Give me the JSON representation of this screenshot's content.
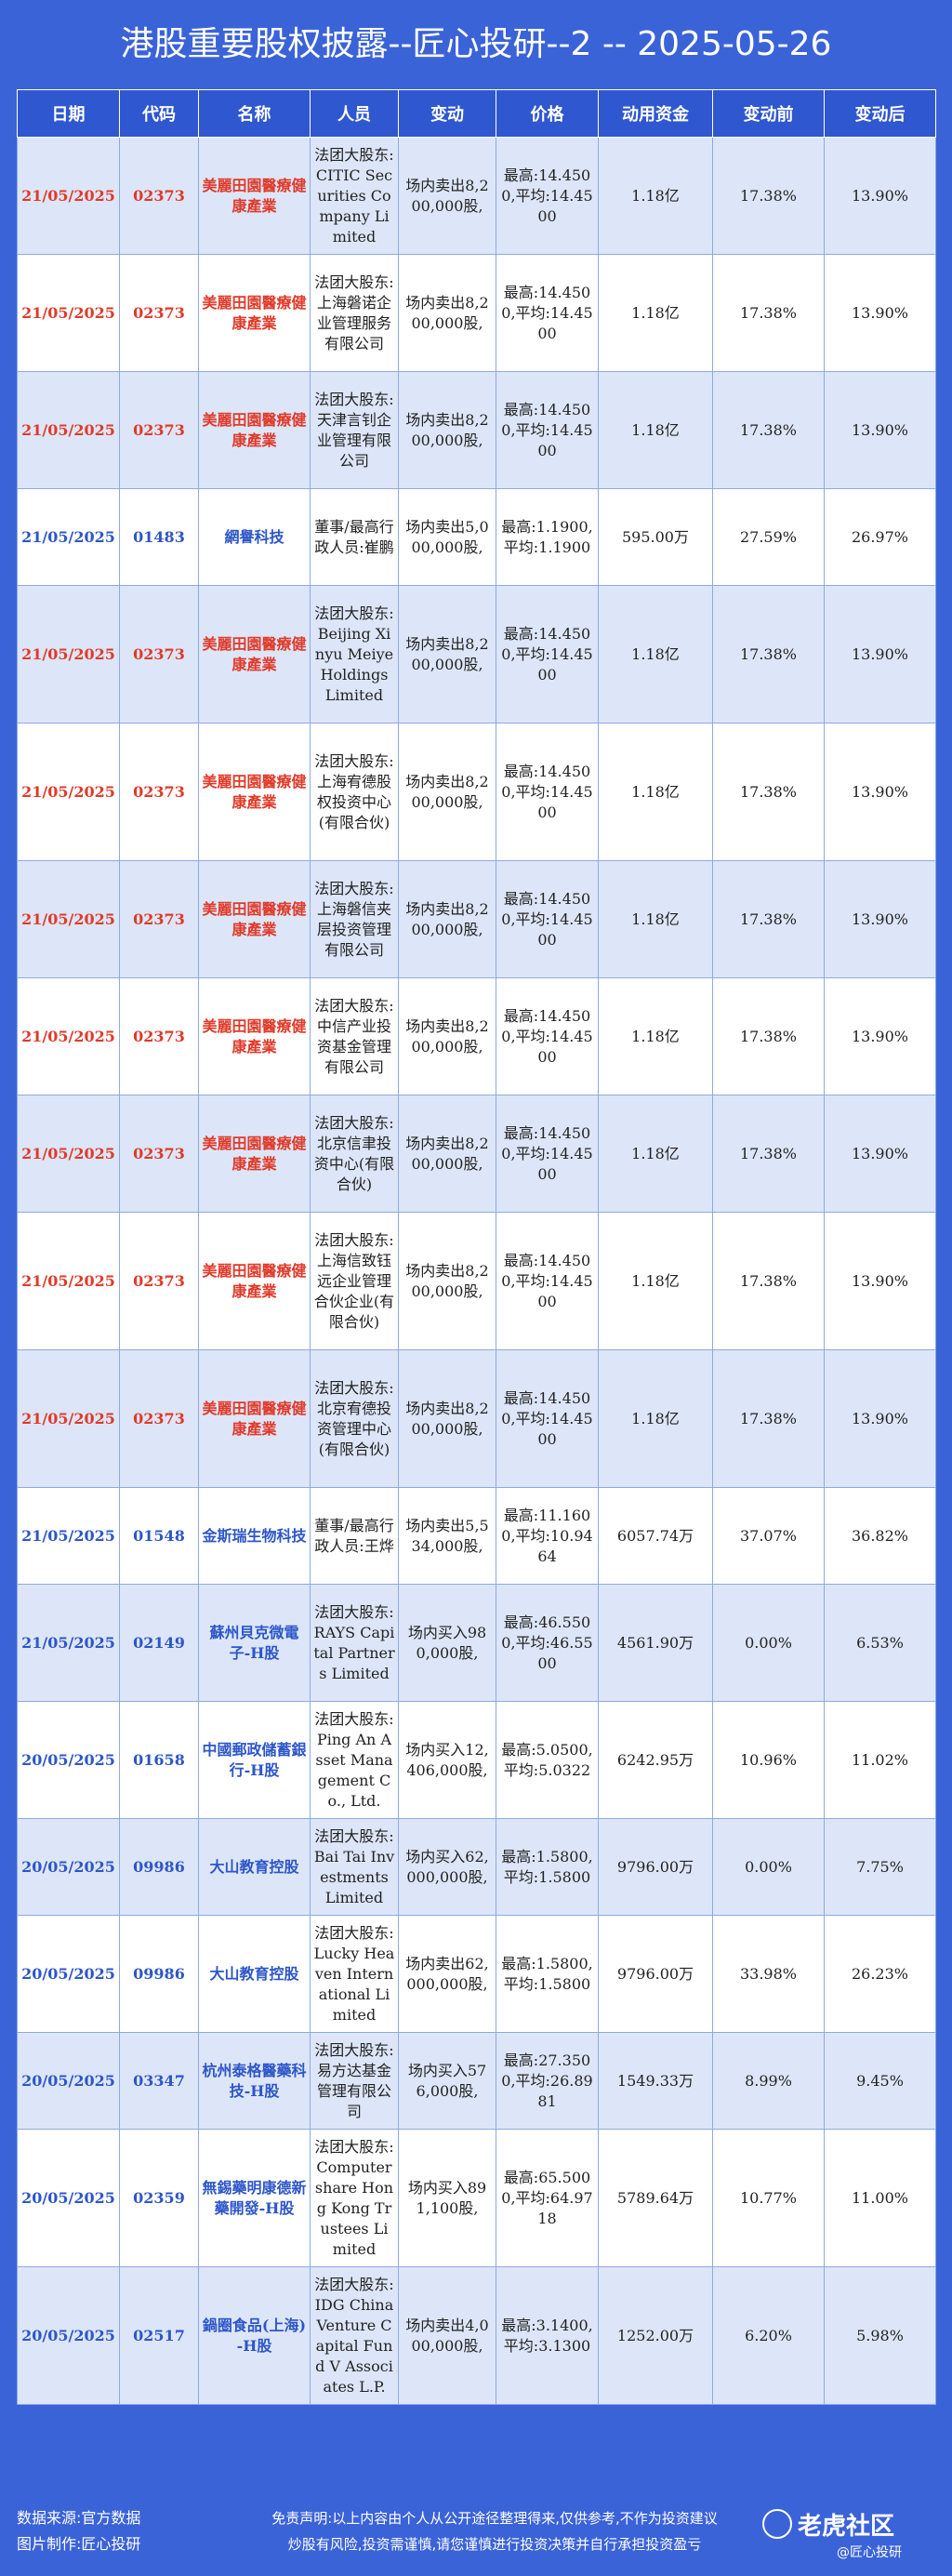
{
  "title": "港股重要股权披露--匠心投研--2 -- 2025-05-26",
  "headers": [
    "日期",
    "代码",
    "名称",
    "人员",
    "变动",
    "价格",
    "动用资金",
    "变动前",
    "变动后"
  ],
  "rows": [
    {
      "date": "21/05/2025",
      "code": "02373",
      "name": "美麗田園醫療健康產業",
      "person": "法团大股东:CITIC Securities Company Limited",
      "change": "场内卖出8,200,000股,",
      "price": "最高:14.4500,平均:14.4500",
      "amount": "1.18亿",
      "before": "17.38%",
      "after": "13.90%",
      "color": "red"
    },
    {
      "date": "21/05/2025",
      "code": "02373",
      "name": "美麗田園醫療健康產業",
      "person": "法团大股东:上海磐诺企业管理服务有限公司",
      "change": "场内卖出8,200,000股,",
      "price": "最高:14.4500,平均:14.4500",
      "amount": "1.18亿",
      "before": "17.38%",
      "after": "13.90%",
      "color": "red"
    },
    {
      "date": "21/05/2025",
      "code": "02373",
      "name": "美麗田園醫療健康產業",
      "person": "法团大股东:天津言钊企业管理有限公司",
      "change": "场内卖出8,200,000股,",
      "price": "最高:14.4500,平均:14.4500",
      "amount": "1.18亿",
      "before": "17.38%",
      "after": "13.90%",
      "color": "red"
    },
    {
      "date": "21/05/2025",
      "code": "01483",
      "name": "網譽科技",
      "person": "董事/最高行政人员:崔鹏",
      "change": "场内卖出5,000,000股,",
      "price": "最高:1.1900,平均:1.1900",
      "amount": "595.00万",
      "before": "27.59%",
      "after": "26.97%",
      "color": "blue"
    },
    {
      "date": "21/05/2025",
      "code": "02373",
      "name": "美麗田園醫療健康產業",
      "person": "法团大股东:Beijing Xinyu Meiye Holdings Limited",
      "change": "场内卖出8,200,000股,",
      "price": "最高:14.4500,平均:14.4500",
      "amount": "1.18亿",
      "before": "17.38%",
      "after": "13.90%",
      "color": "red"
    },
    {
      "date": "21/05/2025",
      "code": "02373",
      "name": "美麗田園醫療健康產業",
      "person": "法团大股东:上海宥德股权投资中心(有限合伙)",
      "change": "场内卖出8,200,000股,",
      "price": "最高:14.4500,平均:14.4500",
      "amount": "1.18亿",
      "before": "17.38%",
      "after": "13.90%",
      "color": "red"
    },
    {
      "date": "21/05/2025",
      "code": "02373",
      "name": "美麗田園醫療健康產業",
      "person": "法团大股东:上海磐信夹层投资管理有限公司",
      "change": "场内卖出8,200,000股,",
      "price": "最高:14.4500,平均:14.4500",
      "amount": "1.18亿",
      "before": "17.38%",
      "after": "13.90%",
      "color": "red"
    },
    {
      "date": "21/05/2025",
      "code": "02373",
      "name": "美麗田園醫療健康產業",
      "person": "法团大股东:中信产业投资基金管理有限公司",
      "change": "场内卖出8,200,000股,",
      "price": "最高:14.4500,平均:14.4500",
      "amount": "1.18亿",
      "before": "17.38%",
      "after": "13.90%",
      "color": "red"
    },
    {
      "date": "21/05/2025",
      "code": "02373",
      "name": "美麗田園醫療健康產業",
      "person": "法团大股东:北京信聿投资中心(有限合伙)",
      "change": "场内卖出8,200,000股,",
      "price": "最高:14.4500,平均:14.4500",
      "amount": "1.18亿",
      "before": "17.38%",
      "after": "13.90%",
      "color": "red"
    },
    {
      "date": "21/05/2025",
      "code": "02373",
      "name": "美麗田園醫療健康產業",
      "person": "法团大股东:上海信致钰远企业管理合伙企业(有限合伙)",
      "change": "场内卖出8,200,000股,",
      "price": "最高:14.4500,平均:14.4500",
      "amount": "1.18亿",
      "before": "17.38%",
      "after": "13.90%",
      "color": "red"
    },
    {
      "date": "21/05/2025",
      "code": "02373",
      "name": "美麗田園醫療健康產業",
      "person": "法团大股东:北京宥德投资管理中心(有限合伙)",
      "change": "场内卖出8,200,000股,",
      "price": "最高:14.4500,平均:14.4500",
      "amount": "1.18亿",
      "before": "17.38%",
      "after": "13.90%",
      "color": "red"
    },
    {
      "date": "21/05/2025",
      "code": "01548",
      "name": "金斯瑞生物科技",
      "person": "董事/最高行政人员:王烨",
      "change": "场内卖出5,534,000股,",
      "price": "最高:11.1600,平均:10.9464",
      "amount": "6057.74万",
      "before": "37.07%",
      "after": "36.82%",
      "color": "blue"
    },
    {
      "date": "21/05/2025",
      "code": "02149",
      "name": "蘇州貝克微電子-H股",
      "person": "法团大股东:RAYS Capital Partners Limited",
      "change": "场内买入980,000股,",
      "price": "最高:46.5500,平均:46.5500",
      "amount": "4561.90万",
      "before": "0.00%",
      "after": "6.53%",
      "color": "blue"
    },
    {
      "date": "20/05/2025",
      "code": "01658",
      "name": "中國郵政儲蓄銀行-H股",
      "person": "法团大股东:Ping An Asset Management Co., Ltd.",
      "change": "场内买入12,406,000股,",
      "price": "最高:5.0500,平均:5.0322",
      "amount": "6242.95万",
      "before": "10.96%",
      "after": "11.02%",
      "color": "blue"
    },
    {
      "date": "20/05/2025",
      "code": "09986",
      "name": "大山教育控股",
      "person": "法团大股东:Bai Tai Investments Limited",
      "change": "场内买入62,000,000股,",
      "price": "最高:1.5800,平均:1.5800",
      "amount": "9796.00万",
      "before": "0.00%",
      "after": "7.75%",
      "color": "blue"
    },
    {
      "date": "20/05/2025",
      "code": "09986",
      "name": "大山教育控股",
      "person": "法团大股东:Lucky Heaven International Limited",
      "change": "场内卖出62,000,000股,",
      "price": "最高:1.5800,平均:1.5800",
      "amount": "9796.00万",
      "before": "33.98%",
      "after": "26.23%",
      "color": "blue"
    },
    {
      "date": "20/05/2025",
      "code": "03347",
      "name": "杭州泰格醫藥科技-H股",
      "person": "法团大股东:易方达基金管理有限公司",
      "change": "场内买入576,000股,",
      "price": "最高:27.3500,平均:26.8981",
      "amount": "1549.33万",
      "before": "8.99%",
      "after": "9.45%",
      "color": "blue"
    },
    {
      "date": "20/05/2025",
      "code": "02359",
      "name": "無錫藥明康德新藥開發-H股",
      "person": "法团大股东:Computershare Hong Kong Trustees Limited",
      "change": "场内买入891,100股,",
      "price": "最高:65.5000,平均:64.9718",
      "amount": "5789.64万",
      "before": "10.77%",
      "after": "11.00%",
      "color": "blue"
    },
    {
      "date": "20/05/2025",
      "code": "02517",
      "name": "鍋圈食品(上海)-H股",
      "person": "法团大股东:IDG China Venture Capital Fund V Associates L.P.",
      "change": "场内卖出4,000,000股,",
      "price": "最高:3.1400,平均:3.1300",
      "amount": "1252.00万",
      "before": "6.20%",
      "after": "5.98%",
      "color": "blue"
    }
  ],
  "footer": {
    "line1": "数据来源:官方数据",
    "line2": "图片制作:匠心投研",
    "disclaimer1": "免责声明:以上内容由个人从公开途径整理得来,仅供参考,不作为投资建议",
    "disclaimer2": "炒股有风险,投资需谨慎,请您谨慎进行投资决策并自行承担投资盈亏",
    "logo": "老虎社区",
    "user": "@匠心投研"
  }
}
